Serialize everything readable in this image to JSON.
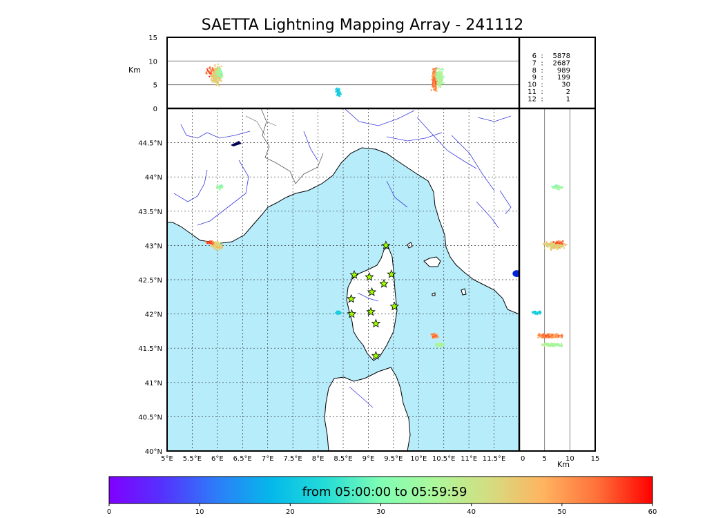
{
  "title": "SAETTA Lightning Mapping Array - 241112",
  "chart_data": {
    "type": "scatter",
    "map": {
      "lon_ticks": [
        "5°E",
        "5.5°E",
        "6°E",
        "6.5°E",
        "7°E",
        "7.5°E",
        "8°E",
        "8.5°E",
        "9°E",
        "9.5°E",
        "10°E",
        "10.5°E",
        "11°E",
        "11.5°E"
      ],
      "lat_ticks": [
        "40°N",
        "40.5°N",
        "41°N",
        "41.5°N",
        "42°N",
        "42.5°N",
        "43°N",
        "43.5°N",
        "44°N",
        "44.5°N"
      ],
      "xlim": [
        5,
        12
      ],
      "ylim": [
        40,
        45
      ],
      "grid": true,
      "sea_color": "#b7ecfb",
      "land_color": "#ffffff"
    },
    "altitude": {
      "unit_label": "Km",
      "ticks": [
        "0",
        "5",
        "10",
        "15"
      ],
      "range": [
        0,
        15
      ]
    },
    "station_counts": [
      {
        "stations": "6",
        "sep": ":",
        "count": "5878",
        "highlight": false
      },
      {
        "stations": "7",
        "sep": ":",
        "count": "2687",
        "highlight": true
      },
      {
        "stations": "8",
        "sep": ":",
        "count": "989",
        "highlight": false
      },
      {
        "stations": "9",
        "sep": ":",
        "count": "199",
        "highlight": false
      },
      {
        "stations": "10",
        "sep": ":",
        "count": "30",
        "highlight": false
      },
      {
        "stations": "11",
        "sep": ":",
        "count": "2",
        "highlight": false
      },
      {
        "stations": "12",
        "sep": ":",
        "count": "1",
        "highlight": false
      }
    ],
    "highlight_color": "#ff0000",
    "stations": [
      {
        "lon": 9.35,
        "lat": 43.0
      },
      {
        "lon": 8.72,
        "lat": 42.57
      },
      {
        "lon": 9.02,
        "lat": 42.54
      },
      {
        "lon": 9.46,
        "lat": 42.58
      },
      {
        "lon": 9.31,
        "lat": 42.44
      },
      {
        "lon": 9.07,
        "lat": 42.32
      },
      {
        "lon": 8.66,
        "lat": 42.22
      },
      {
        "lon": 9.52,
        "lat": 42.11
      },
      {
        "lon": 8.67,
        "lat": 42.0
      },
      {
        "lon": 9.05,
        "lat": 42.03
      },
      {
        "lon": 9.15,
        "lat": 41.86
      },
      {
        "lon": 9.15,
        "lat": 41.39
      }
    ],
    "clusters": [
      {
        "lon": 5.98,
        "lat": 43.0,
        "alt": 7.0,
        "minute": 44,
        "count": 260,
        "spread_lon": 0.14,
        "spread_lat": 0.07,
        "alt_spread": 2.6
      },
      {
        "lon": 5.85,
        "lat": 43.04,
        "alt": 8.0,
        "minute": 55,
        "count": 25,
        "spread_lon": 0.12,
        "spread_lat": 0.04,
        "alt_spread": 1.5
      },
      {
        "lon": 6.05,
        "lat": 43.85,
        "alt": 7.5,
        "minute": 34,
        "count": 45,
        "spread_lon": 0.09,
        "spread_lat": 0.04,
        "alt_spread": 1.3
      },
      {
        "lon": 8.4,
        "lat": 42.02,
        "alt": 3.5,
        "minute": 22,
        "count": 60,
        "spread_lon": 0.07,
        "spread_lat": 0.03,
        "alt_spread": 1.1
      },
      {
        "lon": 10.32,
        "lat": 41.68,
        "alt": 6.0,
        "minute": 52,
        "count": 200,
        "spread_lon": 0.08,
        "spread_lat": 0.04,
        "alt_spread": 3.0
      },
      {
        "lon": 10.42,
        "lat": 41.55,
        "alt": 6.5,
        "minute": 36,
        "count": 150,
        "spread_lon": 0.1,
        "spread_lat": 0.03,
        "alt_spread": 2.6
      }
    ],
    "outlier_point": {
      "lon": 11.95,
      "lat": 42.59,
      "color": "#0022dd"
    },
    "colorbar": {
      "label": "from 05:00:00 to 05:59:59",
      "ticks": [
        "0",
        "10",
        "20",
        "30",
        "40",
        "50",
        "60"
      ],
      "range": [
        0,
        60
      ],
      "colormap": "rainbow"
    }
  }
}
